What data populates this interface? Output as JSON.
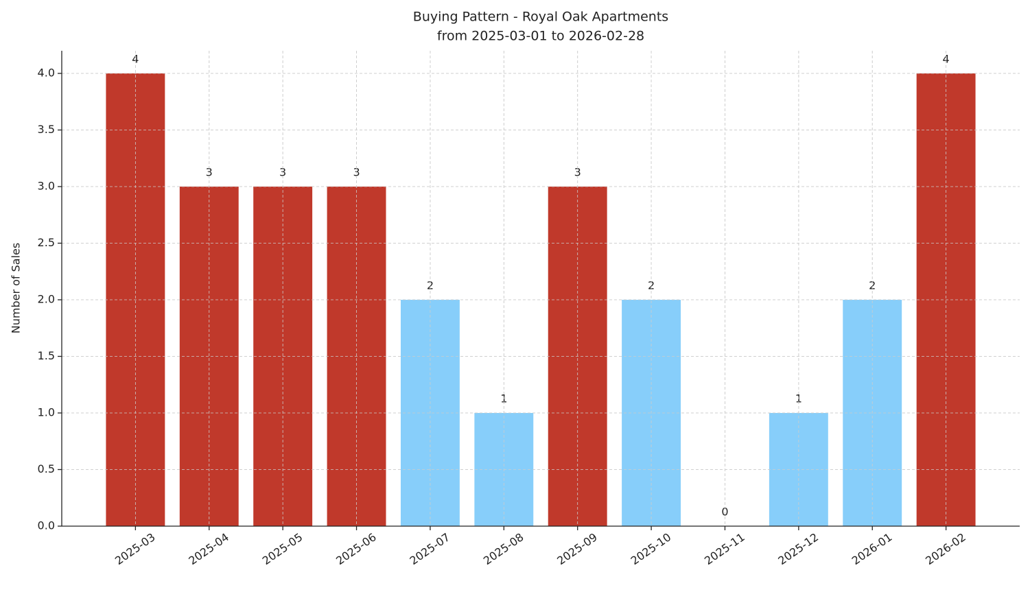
{
  "chart_data": {
    "type": "bar",
    "title": "Buying Pattern - Royal Oak Apartments",
    "subtitle": "from 2025-03-01 to 2026-02-28",
    "y_label": "Number of Sales",
    "categories": [
      "2025-03",
      "2025-04",
      "2025-05",
      "2025-06",
      "2025-07",
      "2025-08",
      "2025-09",
      "2025-10",
      "2025-11",
      "2025-12",
      "2026-01",
      "2026-02"
    ],
    "values": [
      4,
      3,
      3,
      3,
      2,
      1,
      3,
      2,
      0,
      1,
      2,
      4
    ],
    "colors": [
      "#c0392b",
      "#c0392b",
      "#c0392b",
      "#c0392b",
      "#87cefa",
      "#87cefa",
      "#c0392b",
      "#87cefa",
      "#87cefa",
      "#87cefa",
      "#87cefa",
      "#c0392b"
    ],
    "ylim": [
      0,
      4.2
    ],
    "yticks": [
      {
        "value": 0,
        "label": "0.0"
      },
      0.5,
      {
        "value": 1,
        "label": "1.0"
      },
      1.5,
      {
        "value": 2,
        "label": "2.0"
      },
      2.5,
      {
        "value": 3,
        "label": "3.0"
      },
      3.5,
      {
        "value": 4,
        "label": "4.0"
      }
    ],
    "grid": true
  }
}
